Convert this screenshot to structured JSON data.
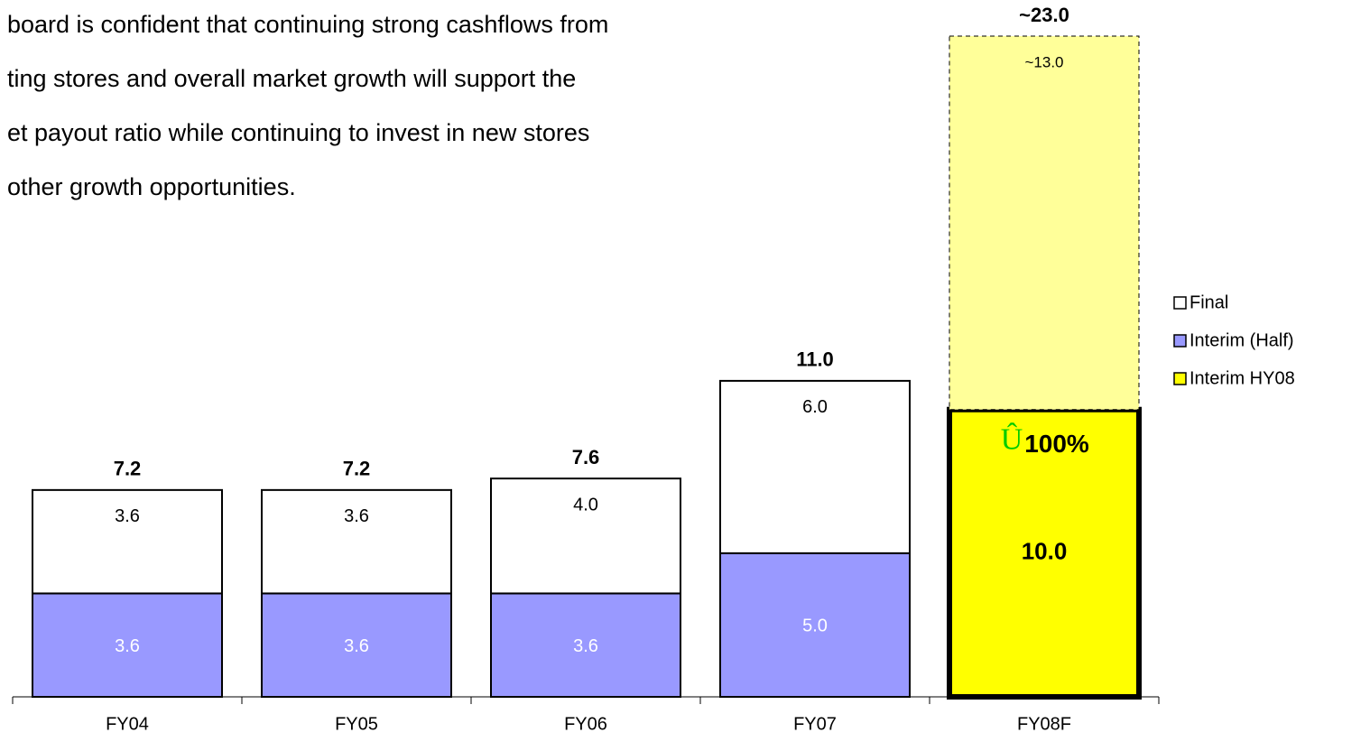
{
  "chart_data": {
    "type": "stacked_bar",
    "annotations": [
      "board is confident that continuing strong cashflows from",
      "ting stores and overall market growth will support the",
      "et payout ratio while continuing to invest in new stores",
      " other growth opportunities."
    ],
    "categories": [
      "FY04",
      "FY05",
      "FY06",
      "FY07",
      "FY08F"
    ],
    "series": [
      {
        "name": "Interim (Half)",
        "color": "#9999ff",
        "values": [
          3.6,
          3.6,
          3.6,
          5.0,
          null
        ],
        "value_labels": [
          "3.6",
          "3.6",
          "3.6",
          "5.0",
          null
        ]
      },
      {
        "name": "Interim HY08",
        "color": "#ffff00",
        "values": [
          null,
          null,
          null,
          null,
          10.0
        ],
        "value_labels": [
          null,
          null,
          null,
          null,
          "10.0"
        ]
      },
      {
        "name": "Final",
        "color": "#ffffff",
        "forecast_color": "#ffff99",
        "values": [
          3.6,
          3.6,
          4.0,
          6.0,
          13.0
        ],
        "value_labels": [
          "3.6",
          "3.6",
          "4.0",
          "6.0",
          "~13.0"
        ]
      }
    ],
    "legend_order": [
      2,
      0,
      1
    ],
    "totals": [
      7.2,
      7.2,
      7.6,
      11.0,
      23.0
    ],
    "total_labels": [
      "7.2",
      "7.2",
      "7.6",
      "11.0",
      "~23.0"
    ],
    "badge": {
      "symbol": "Û",
      "text": "100%"
    }
  }
}
